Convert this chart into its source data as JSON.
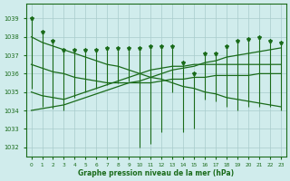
{
  "hours": [
    0,
    1,
    2,
    3,
    4,
    5,
    6,
    7,
    8,
    9,
    10,
    11,
    12,
    13,
    14,
    15,
    16,
    17,
    18,
    19,
    20,
    21,
    22,
    23
  ],
  "max_values": [
    1039.0,
    1038.3,
    1037.8,
    1037.3,
    1037.3,
    1037.3,
    1037.3,
    1037.4,
    1037.4,
    1037.4,
    1037.4,
    1037.5,
    1037.5,
    1037.5,
    1036.6,
    1036.0,
    1037.1,
    1037.1,
    1037.5,
    1037.8,
    1037.9,
    1038.0,
    1037.8,
    1037.7
  ],
  "min_values": [
    1035.2,
    1034.2,
    1034.1,
    1034.0,
    1034.7,
    1035.0,
    1035.2,
    1035.4,
    1035.5,
    1035.6,
    1032.0,
    1032.2,
    1032.8,
    1035.0,
    1032.8,
    1033.0,
    1034.6,
    1034.5,
    1034.2,
    1034.0,
    1034.2,
    1034.2,
    1034.2,
    1034.0
  ],
  "line1": [
    1038.0,
    1037.7,
    1037.5,
    1037.3,
    1037.1,
    1036.9,
    1036.7,
    1036.5,
    1036.4,
    1036.2,
    1036.0,
    1035.8,
    1035.7,
    1035.5,
    1035.3,
    1035.2,
    1035.0,
    1034.9,
    1034.7,
    1034.6,
    1034.5,
    1034.4,
    1034.3,
    1034.2
  ],
  "line2": [
    1036.5,
    1036.3,
    1036.1,
    1036.0,
    1035.8,
    1035.7,
    1035.6,
    1035.5,
    1035.5,
    1035.5,
    1035.5,
    1035.5,
    1035.6,
    1035.7,
    1035.7,
    1035.8,
    1035.8,
    1035.9,
    1035.9,
    1035.9,
    1035.9,
    1036.0,
    1036.0,
    1036.0
  ],
  "line3": [
    1035.0,
    1034.8,
    1034.7,
    1034.6,
    1034.8,
    1035.0,
    1035.2,
    1035.4,
    1035.6,
    1035.8,
    1036.0,
    1036.2,
    1036.3,
    1036.4,
    1036.4,
    1036.5,
    1036.5,
    1036.5,
    1036.5,
    1036.5,
    1036.5,
    1036.5,
    1036.5,
    1036.5
  ],
  "line4": [
    1034.0,
    1034.1,
    1034.2,
    1034.3,
    1034.5,
    1034.7,
    1034.9,
    1035.1,
    1035.3,
    1035.5,
    1035.6,
    1035.8,
    1036.0,
    1036.2,
    1036.3,
    1036.4,
    1036.6,
    1036.7,
    1036.9,
    1037.0,
    1037.1,
    1037.2,
    1037.3,
    1037.4
  ],
  "bg_color": "#d0ecec",
  "grid_color": "#a8cccc",
  "line_color": "#1a6b1a",
  "ylim": [
    1031.5,
    1039.8
  ],
  "yticks": [
    1032,
    1033,
    1034,
    1035,
    1036,
    1037,
    1038,
    1039
  ],
  "xlabel": "Graphe pression niveau de la mer (hPa)"
}
